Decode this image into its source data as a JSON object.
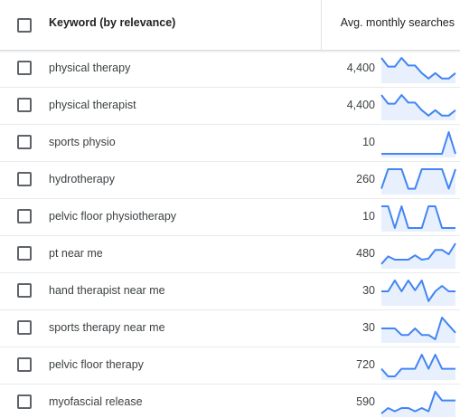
{
  "header": {
    "keyword_label": "Keyword (by relevance)",
    "searches_label": "Avg. monthly searches"
  },
  "colors": {
    "trend_line": "#4285f4",
    "trend_fill": "#e8f0fe"
  },
  "rows": [
    {
      "keyword": "physical therapy",
      "searches": "4,400",
      "trend": [
        1.0,
        0.6,
        0.6,
        1.0,
        0.65,
        0.65,
        0.3,
        0.05,
        0.3,
        0.05,
        0.05,
        0.3
      ]
    },
    {
      "keyword": "physical therapist",
      "searches": "4,400",
      "trend": [
        1.0,
        0.6,
        0.6,
        1.0,
        0.65,
        0.65,
        0.3,
        0.05,
        0.3,
        0.05,
        0.05,
        0.3
      ]
    },
    {
      "keyword": "sports physio",
      "searches": "10",
      "trend": [
        0,
        0,
        0,
        0,
        0,
        0,
        0,
        0,
        0,
        0,
        1.0,
        0
      ]
    },
    {
      "keyword": "hydrotherapy",
      "searches": "260",
      "trend": [
        0.1,
        1.0,
        1.0,
        1.0,
        0.1,
        0.1,
        1.0,
        1.0,
        1.0,
        1.0,
        0.1,
        1.0
      ]
    },
    {
      "keyword": "pelvic floor physiotherapy",
      "searches": "10",
      "trend": [
        1.0,
        1.0,
        0,
        1.0,
        0,
        0,
        0,
        1.0,
        1.0,
        0,
        0,
        0
      ]
    },
    {
      "keyword": "pt near me",
      "searches": "480",
      "trend": [
        0.05,
        0.4,
        0.25,
        0.25,
        0.25,
        0.45,
        0.25,
        0.3,
        0.7,
        0.7,
        0.5,
        1.0
      ]
    },
    {
      "keyword": "hand therapist near me",
      "searches": "30",
      "trend": [
        0.5,
        0.5,
        1.0,
        0.5,
        1.0,
        0.55,
        1.0,
        0.05,
        0.5,
        0.75,
        0.5,
        0.5
      ]
    },
    {
      "keyword": "sports therapy near me",
      "searches": "30",
      "trend": [
        0.5,
        0.5,
        0.5,
        0.2,
        0.2,
        0.5,
        0.2,
        0.2,
        0.0,
        1.0,
        0.65,
        0.3
      ]
    },
    {
      "keyword": "pelvic floor therapy",
      "searches": "720",
      "trend": [
        0.35,
        0.0,
        0.0,
        0.35,
        0.35,
        0.35,
        1.0,
        0.35,
        1.0,
        0.35,
        0.35,
        0.35
      ]
    },
    {
      "keyword": "myofascial release",
      "searches": "590",
      "trend": [
        0.0,
        0.25,
        0.1,
        0.25,
        0.25,
        0.1,
        0.25,
        0.1,
        1.0,
        0.6,
        0.6,
        0.6
      ]
    }
  ]
}
